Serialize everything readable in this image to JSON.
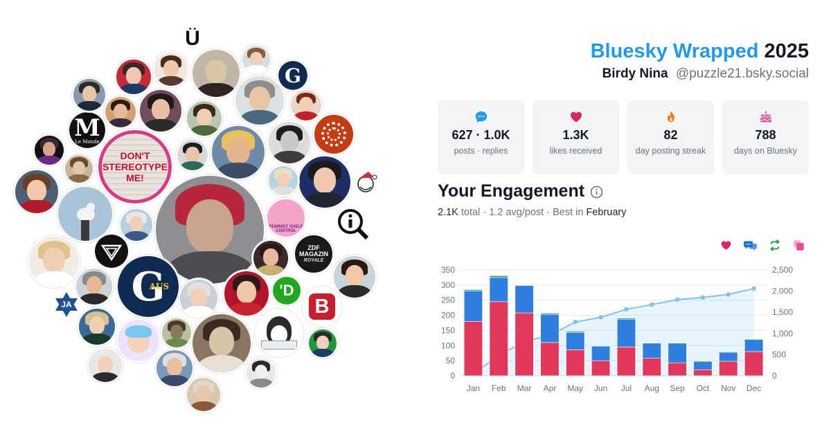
{
  "header": {
    "title_accent": "Bluesky Wrapped",
    "title_year": "2025",
    "display_name": "Birdy Nina",
    "handle": "@puzzle21.bsky.social"
  },
  "stats": [
    {
      "icon": "chat-bubble-icon",
      "color": "#1d9bf0",
      "value": "627 · 1.0K",
      "label": "posts · replies"
    },
    {
      "icon": "heart-icon",
      "color": "#e0245e",
      "value": "1.3K",
      "label": "likes received"
    },
    {
      "icon": "flame-icon",
      "color": "#f97316",
      "value": "82",
      "label": "day posting streak"
    },
    {
      "icon": "cake-icon",
      "color": "#ec4899",
      "value": "788",
      "label": "days on Bluesky"
    }
  ],
  "engagement": {
    "title": "Your Engagement",
    "total": "2.1K",
    "total_word": "total",
    "avg": "1.2 avg/post",
    "best_prefix": "Best in",
    "best_month": "February"
  },
  "legend_icons": [
    {
      "icon": "heart-icon",
      "color": "#e0245e"
    },
    {
      "icon": "replies-icon",
      "color": "#1d6fe0"
    },
    {
      "icon": "repost-icon",
      "color": "#16a34a"
    },
    {
      "icon": "quote-icon",
      "color": "#ec4899"
    }
  ],
  "cluster_logos": {
    "le_monde": "M",
    "le_monde_small": "Le Monde",
    "guardian": "G",
    "guardian_aus": "AUS",
    "u_logo": "Ü",
    "ja": "JA",
    "zdf": "ZDF MAGAZIN",
    "zdf_sub": "ROYALE",
    "d_logo": "'D",
    "b_logo": "B",
    "sign_text": "DON'T STEREOTYPE ME!",
    "feminist_text": "FEMINIST SHELF CONTROL"
  },
  "chart_data": {
    "type": "bar",
    "stacked": true,
    "categories": [
      "Jan",
      "Feb",
      "Mar",
      "Apr",
      "May",
      "Jun",
      "Jul",
      "Aug",
      "Sep",
      "Oct",
      "Nov",
      "Dec"
    ],
    "series": [
      {
        "color": "#e1375b",
        "values": [
          180,
          245,
          208,
          110,
          86,
          50,
          95,
          58,
          43,
          20,
          48,
          80
        ]
      },
      {
        "color": "#2f7fe0",
        "values": [
          100,
          80,
          90,
          93,
          57,
          48,
          92,
          50,
          65,
          28,
          30,
          40
        ]
      },
      {
        "color": "#27ae60",
        "values": [
          5,
          6,
          2,
          4,
          4,
          1,
          4,
          1,
          1,
          1,
          2,
          2
        ]
      },
      {
        "color": "#ec4899",
        "values": [
          1,
          1,
          0,
          1,
          1,
          0,
          1,
          0,
          0,
          0,
          0,
          0
        ]
      }
    ],
    "cumulative_line": {
      "color": "#7cc3f0",
      "values": [
        40,
        490,
        800,
        960,
        1270,
        1380,
        1570,
        1680,
        1800,
        1850,
        1920,
        2060
      ]
    },
    "ylim_left": [
      0,
      350
    ],
    "yticks_left": [
      0,
      50,
      100,
      150,
      200,
      250,
      300,
      350
    ],
    "ylim_right": [
      0,
      2500
    ],
    "yticks_right": [
      "0",
      "500",
      "1,000",
      "1,500",
      "2,000",
      "2,500"
    ],
    "grid": true
  }
}
